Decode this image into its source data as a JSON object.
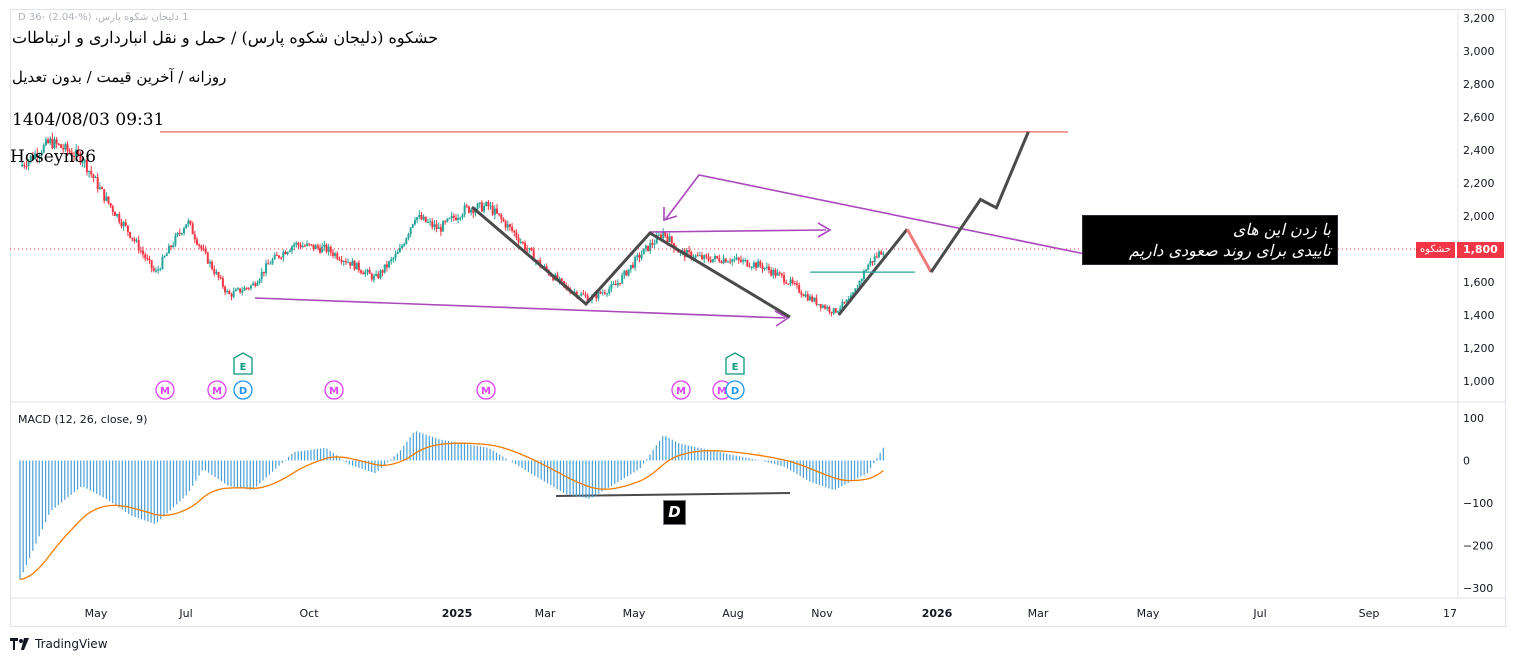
{
  "header": {
    "top_legend": "1 دلیجان شکوه پارس، D 36- (2.04-%)",
    "title": "حشکوه (دلیجان شکوه پارس) / حمل و نقل انبارداری و ارتباطات",
    "subtitle": "روزانه / آخرین قیمت / بدون تعدیل",
    "datetime": "1404/08/03 09:31",
    "author": "Hoseyn86"
  },
  "annotation": {
    "line1": "با زدن این های",
    "line2": "تاییدی برای روند صعودی داریم"
  },
  "pattern_label": "D",
  "price_badge": {
    "name": "حشکوه",
    "value": "1,800"
  },
  "footer": {
    "brand": "TradingView"
  },
  "colors": {
    "bull": "#26a69a",
    "bear": "#f23645",
    "magenta": "#ab47bc",
    "projection": "#4a4a4a",
    "resistance": "#ef7b7b",
    "support_teal": "#26a69a",
    "macd_hist": "#4a9fd8",
    "macd_signal": "#f57c00"
  },
  "chart_data": {
    "type": "candlestick",
    "price_axis": {
      "ticks": [
        3200,
        3000,
        2800,
        2600,
        2400,
        2200,
        2000,
        1800,
        1600,
        1400,
        1200,
        1000
      ],
      "tick_labels": [
        "3,200",
        "3,000",
        "2,800",
        "2,600",
        "2,400",
        "2,200",
        "2,000",
        "1,800",
        "1,600",
        "1,400",
        "1,200",
        "1,000"
      ],
      "range": [
        880,
        3200
      ]
    },
    "x_axis": {
      "labels": [
        "May",
        "Jul",
        "Oct",
        "2025",
        "Mar",
        "May",
        "Aug",
        "Nov",
        "2026",
        "Mar",
        "May",
        "Jul",
        "Sep",
        "17"
      ]
    },
    "last_price": 1800,
    "resistance_level": 2510,
    "price_path": [
      {
        "date": "2024-04",
        "close": 2300
      },
      {
        "date": "2024-04-20",
        "close": 2450
      },
      {
        "date": "2024-05-10",
        "close": 2350
      },
      {
        "date": "2024-05-25",
        "close": 2100
      },
      {
        "date": "2024-06-10",
        "close": 1880
      },
      {
        "date": "2024-06-25",
        "close": 1650
      },
      {
        "date": "2024-07-05",
        "close": 1820
      },
      {
        "date": "2024-07-15",
        "close": 1970
      },
      {
        "date": "2024-07-25",
        "close": 1780
      },
      {
        "date": "2024-08-10",
        "close": 1520
      },
      {
        "date": "2024-08-25",
        "close": 1580
      },
      {
        "date": "2024-09-05",
        "close": 1720
      },
      {
        "date": "2024-09-20",
        "close": 1830
      },
      {
        "date": "2024-10-10",
        "close": 1800
      },
      {
        "date": "2024-10-25",
        "close": 1720
      },
      {
        "date": "2024-11-10",
        "close": 1620
      },
      {
        "date": "2024-11-25",
        "close": 1780
      },
      {
        "date": "2024-12-05",
        "close": 2000
      },
      {
        "date": "2024-12-20",
        "close": 1920
      },
      {
        "date": "2025-01-05",
        "close": 2040
      },
      {
        "date": "2025-01-20",
        "close": 2060
      },
      {
        "date": "2025-02-05",
        "close": 1900
      },
      {
        "date": "2025-02-20",
        "close": 1720
      },
      {
        "date": "2025-03-10",
        "close": 1560
      },
      {
        "date": "2025-03-25",
        "close": 1500
      },
      {
        "date": "2025-04-10",
        "close": 1580
      },
      {
        "date": "2025-04-25",
        "close": 1760
      },
      {
        "date": "2025-05-10",
        "close": 1900
      },
      {
        "date": "2025-05-20",
        "close": 1780
      },
      {
        "date": "2025-06-05",
        "close": 1740
      },
      {
        "date": "2025-06-20",
        "close": 1740
      },
      {
        "date": "2025-07-10",
        "close": 1700
      },
      {
        "date": "2025-07-25",
        "close": 1620
      },
      {
        "date": "2025-08-10",
        "close": 1500
      },
      {
        "date": "2025-08-25",
        "close": 1420
      },
      {
        "date": "2025-09-05",
        "close": 1500
      },
      {
        "date": "2025-09-15",
        "close": 1700
      },
      {
        "date": "2025-09-25",
        "close": 1800
      }
    ],
    "projection": [
      {
        "date": "2025-08-28",
        "value": 1400
      },
      {
        "date": "2025-10-10",
        "value": 1920
      },
      {
        "date": "2025-10-25",
        "value": 1660
      },
      {
        "date": "2025-11-25",
        "value": 2100
      },
      {
        "date": "2025-12-05",
        "value": 2050
      },
      {
        "date": "2025-12-25",
        "value": 2510
      }
    ],
    "events": {
      "M": [
        "2024-06",
        "2024-07",
        "2024-10",
        "2025-02",
        "2025-06",
        "2025-08"
      ],
      "D": [
        "2024-08",
        "2025-08"
      ],
      "E": [
        "2024-08",
        "2025-08"
      ]
    },
    "macd": {
      "label": "MACD (12, 26, close, 9)",
      "ticks": [
        100,
        0,
        -100,
        -200,
        -300
      ],
      "tick_labels": [
        "100",
        "0",
        "−100",
        "−200",
        "−300"
      ],
      "range": [
        -330,
        110
      ],
      "histogram_path": [
        {
          "date": "2024-04",
          "value": -280
        },
        {
          "date": "2024-04-20",
          "value": -120
        },
        {
          "date": "2024-05-10",
          "value": -60
        },
        {
          "date": "2024-05-25",
          "value": -90
        },
        {
          "date": "2024-06-10",
          "value": -130
        },
        {
          "date": "2024-06-25",
          "value": -150
        },
        {
          "date": "2024-07-15",
          "value": -80
        },
        {
          "date": "2024-07-25",
          "value": -20
        },
        {
          "date": "2024-08-10",
          "value": -60
        },
        {
          "date": "2024-08-25",
          "value": -70
        },
        {
          "date": "2024-09-20",
          "value": 20
        },
        {
          "date": "2024-10-10",
          "value": 30
        },
        {
          "date": "2024-10-25",
          "value": -10
        },
        {
          "date": "2024-11-10",
          "value": -30
        },
        {
          "date": "2024-11-25",
          "value": 20
        },
        {
          "date": "2024-12-05",
          "value": 70
        },
        {
          "date": "2024-12-20",
          "value": 50
        },
        {
          "date": "2025-01-20",
          "value": 30
        },
        {
          "date": "2025-02-20",
          "value": -40
        },
        {
          "date": "2025-03-10",
          "value": -80
        },
        {
          "date": "2025-03-25",
          "value": -90
        },
        {
          "date": "2025-04-25",
          "value": -20
        },
        {
          "date": "2025-05-10",
          "value": 60
        },
        {
          "date": "2025-05-20",
          "value": 40
        },
        {
          "date": "2025-06-20",
          "value": 15
        },
        {
          "date": "2025-07-10",
          "value": 0
        },
        {
          "date": "2025-07-25",
          "value": -15
        },
        {
          "date": "2025-08-10",
          "value": -50
        },
        {
          "date": "2025-08-25",
          "value": -70
        },
        {
          "date": "2025-09-15",
          "value": -30
        },
        {
          "date": "2025-09-25",
          "value": 30
        }
      ]
    }
  }
}
